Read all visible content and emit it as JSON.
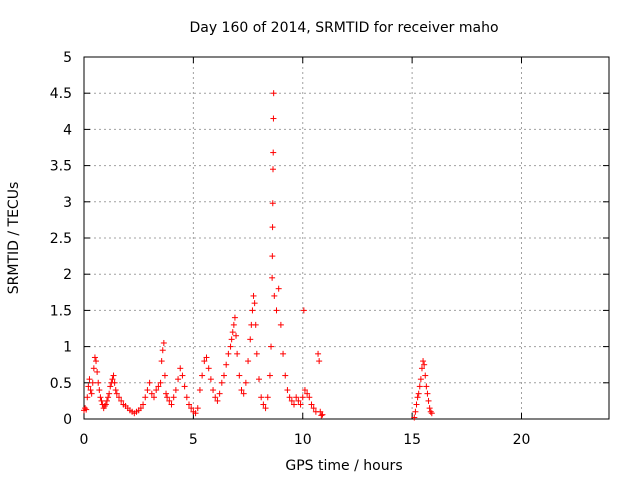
{
  "chart_data": {
    "type": "scatter",
    "title": "Day 160 of 2014, SRMTID for receiver maho",
    "xlabel": "GPS time / hours",
    "ylabel": "SRMTID / TECUs",
    "xlim": [
      0,
      24
    ],
    "ylim": [
      0,
      5
    ],
    "xticks": [
      0,
      5,
      10,
      15,
      20
    ],
    "xtick_labels": [
      "0",
      "5",
      "10",
      "15",
      "20"
    ],
    "yticks": [
      0,
      0.5,
      1,
      1.5,
      2,
      2.5,
      3,
      3.5,
      4,
      4.5,
      5
    ],
    "ytick_labels": [
      "0",
      "0.5",
      "1",
      "1.5",
      "2",
      "2.5",
      "3",
      "3.5",
      "4",
      "4.5",
      "5"
    ],
    "grid": true,
    "marker": "+",
    "series": [
      {
        "name": "SRMTID",
        "color": "#ff0000",
        "points": [
          [
            0.0,
            0.12
          ],
          [
            0.05,
            0.15
          ],
          [
            0.1,
            0.13
          ],
          [
            0.15,
            0.3
          ],
          [
            0.2,
            0.45
          ],
          [
            0.25,
            0.55
          ],
          [
            0.3,
            0.4
          ],
          [
            0.35,
            0.35
          ],
          [
            0.4,
            0.5
          ],
          [
            0.45,
            0.7
          ],
          [
            0.5,
            0.85
          ],
          [
            0.55,
            0.8
          ],
          [
            0.6,
            0.65
          ],
          [
            0.65,
            0.5
          ],
          [
            0.7,
            0.4
          ],
          [
            0.75,
            0.3
          ],
          [
            0.8,
            0.25
          ],
          [
            0.85,
            0.2
          ],
          [
            0.9,
            0.15
          ],
          [
            0.95,
            0.18
          ],
          [
            1.0,
            0.2
          ],
          [
            1.05,
            0.25
          ],
          [
            1.1,
            0.3
          ],
          [
            1.15,
            0.35
          ],
          [
            1.2,
            0.45
          ],
          [
            1.25,
            0.5
          ],
          [
            1.3,
            0.55
          ],
          [
            1.35,
            0.6
          ],
          [
            1.4,
            0.5
          ],
          [
            1.45,
            0.4
          ],
          [
            1.5,
            0.35
          ],
          [
            1.6,
            0.3
          ],
          [
            1.7,
            0.25
          ],
          [
            1.8,
            0.2
          ],
          [
            1.9,
            0.18
          ],
          [
            2.0,
            0.15
          ],
          [
            2.1,
            0.12
          ],
          [
            2.2,
            0.1
          ],
          [
            2.3,
            0.08
          ],
          [
            2.4,
            0.1
          ],
          [
            2.5,
            0.12
          ],
          [
            2.6,
            0.15
          ],
          [
            2.7,
            0.2
          ],
          [
            2.8,
            0.3
          ],
          [
            2.9,
            0.4
          ],
          [
            3.0,
            0.5
          ],
          [
            3.1,
            0.35
          ],
          [
            3.2,
            0.3
          ],
          [
            3.3,
            0.4
          ],
          [
            3.4,
            0.45
          ],
          [
            3.5,
            0.5
          ],
          [
            3.55,
            0.8
          ],
          [
            3.6,
            0.95
          ],
          [
            3.65,
            1.05
          ],
          [
            3.7,
            0.6
          ],
          [
            3.75,
            0.35
          ],
          [
            3.8,
            0.3
          ],
          [
            3.9,
            0.25
          ],
          [
            4.0,
            0.2
          ],
          [
            4.1,
            0.3
          ],
          [
            4.2,
            0.4
          ],
          [
            4.3,
            0.55
          ],
          [
            4.4,
            0.7
          ],
          [
            4.5,
            0.6
          ],
          [
            4.6,
            0.45
          ],
          [
            4.7,
            0.3
          ],
          [
            4.8,
            0.2
          ],
          [
            4.9,
            0.15
          ],
          [
            5.0,
            0.1
          ],
          [
            5.1,
            0.08
          ],
          [
            5.2,
            0.15
          ],
          [
            5.3,
            0.4
          ],
          [
            5.4,
            0.6
          ],
          [
            5.5,
            0.8
          ],
          [
            5.6,
            0.85
          ],
          [
            5.7,
            0.7
          ],
          [
            5.8,
            0.55
          ],
          [
            5.9,
            0.4
          ],
          [
            6.0,
            0.3
          ],
          [
            6.1,
            0.25
          ],
          [
            6.2,
            0.35
          ],
          [
            6.3,
            0.5
          ],
          [
            6.4,
            0.6
          ],
          [
            6.5,
            0.75
          ],
          [
            6.6,
            0.9
          ],
          [
            6.7,
            1.0
          ],
          [
            6.75,
            1.1
          ],
          [
            6.8,
            1.2
          ],
          [
            6.85,
            1.3
          ],
          [
            6.9,
            1.4
          ],
          [
            6.95,
            1.15
          ],
          [
            7.0,
            0.9
          ],
          [
            7.1,
            0.6
          ],
          [
            7.2,
            0.4
          ],
          [
            7.3,
            0.35
          ],
          [
            7.4,
            0.5
          ],
          [
            7.5,
            0.8
          ],
          [
            7.6,
            1.1
          ],
          [
            7.65,
            1.3
          ],
          [
            7.7,
            1.5
          ],
          [
            7.75,
            1.7
          ],
          [
            7.8,
            1.6
          ],
          [
            7.85,
            1.3
          ],
          [
            7.9,
            0.9
          ],
          [
            8.0,
            0.55
          ],
          [
            8.1,
            0.3
          ],
          [
            8.2,
            0.2
          ],
          [
            8.3,
            0.15
          ],
          [
            8.4,
            0.3
          ],
          [
            8.5,
            0.6
          ],
          [
            8.55,
            1.0
          ],
          [
            8.6,
            1.95
          ],
          [
            8.61,
            2.25
          ],
          [
            8.62,
            2.65
          ],
          [
            8.63,
            2.98
          ],
          [
            8.64,
            3.45
          ],
          [
            8.65,
            3.68
          ],
          [
            8.66,
            4.15
          ],
          [
            8.67,
            4.5
          ],
          [
            8.7,
            1.7
          ],
          [
            8.8,
            1.5
          ],
          [
            8.9,
            1.8
          ],
          [
            9.0,
            1.3
          ],
          [
            9.1,
            0.9
          ],
          [
            9.2,
            0.6
          ],
          [
            9.3,
            0.4
          ],
          [
            9.4,
            0.3
          ],
          [
            9.5,
            0.25
          ],
          [
            9.6,
            0.2
          ],
          [
            9.7,
            0.3
          ],
          [
            9.8,
            0.25
          ],
          [
            9.9,
            0.2
          ],
          [
            10.0,
            0.3
          ],
          [
            10.05,
            1.5
          ],
          [
            10.1,
            0.4
          ],
          [
            10.2,
            0.35
          ],
          [
            10.3,
            0.3
          ],
          [
            10.4,
            0.2
          ],
          [
            10.5,
            0.15
          ],
          [
            10.6,
            0.1
          ],
          [
            10.7,
            0.9
          ],
          [
            10.75,
            0.8
          ],
          [
            10.8,
            0.1
          ],
          [
            10.85,
            0.05
          ],
          [
            10.9,
            0.06
          ],
          [
            15.1,
            0.02
          ],
          [
            15.15,
            0.1
          ],
          [
            15.2,
            0.2
          ],
          [
            15.25,
            0.3
          ],
          [
            15.3,
            0.35
          ],
          [
            15.35,
            0.45
          ],
          [
            15.4,
            0.55
          ],
          [
            15.45,
            0.7
          ],
          [
            15.5,
            0.8
          ],
          [
            15.55,
            0.75
          ],
          [
            15.6,
            0.6
          ],
          [
            15.65,
            0.45
          ],
          [
            15.7,
            0.35
          ],
          [
            15.75,
            0.25
          ],
          [
            15.8,
            0.15
          ],
          [
            15.85,
            0.1
          ],
          [
            15.9,
            0.08
          ]
        ]
      }
    ]
  }
}
